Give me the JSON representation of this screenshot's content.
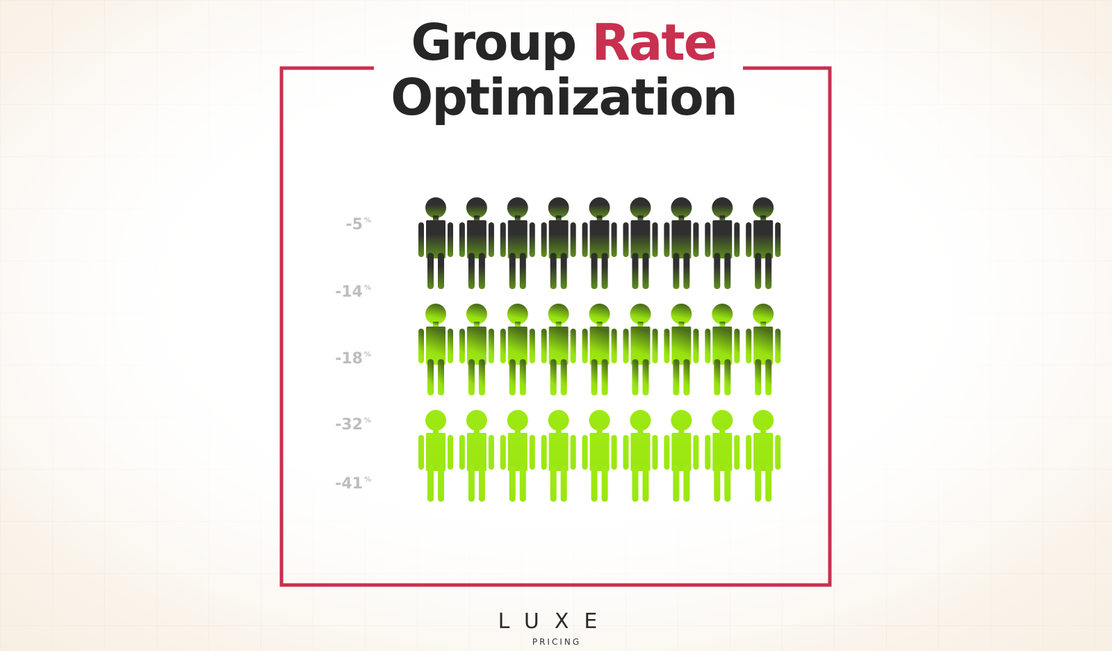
{
  "header": {
    "title_part1": "Group",
    "title_part2": "Rate",
    "title_line2": "Optimization"
  },
  "scale_labels": [
    {
      "number": "-5",
      "unit": "%"
    },
    {
      "number": "-14",
      "unit": "%"
    },
    {
      "number": "-18",
      "unit": "%"
    },
    {
      "number": "-32",
      "unit": "%"
    },
    {
      "number": "-41",
      "unit": "%"
    }
  ],
  "brand": {
    "name": "LUXE",
    "tagline": "PRICING"
  }
}
